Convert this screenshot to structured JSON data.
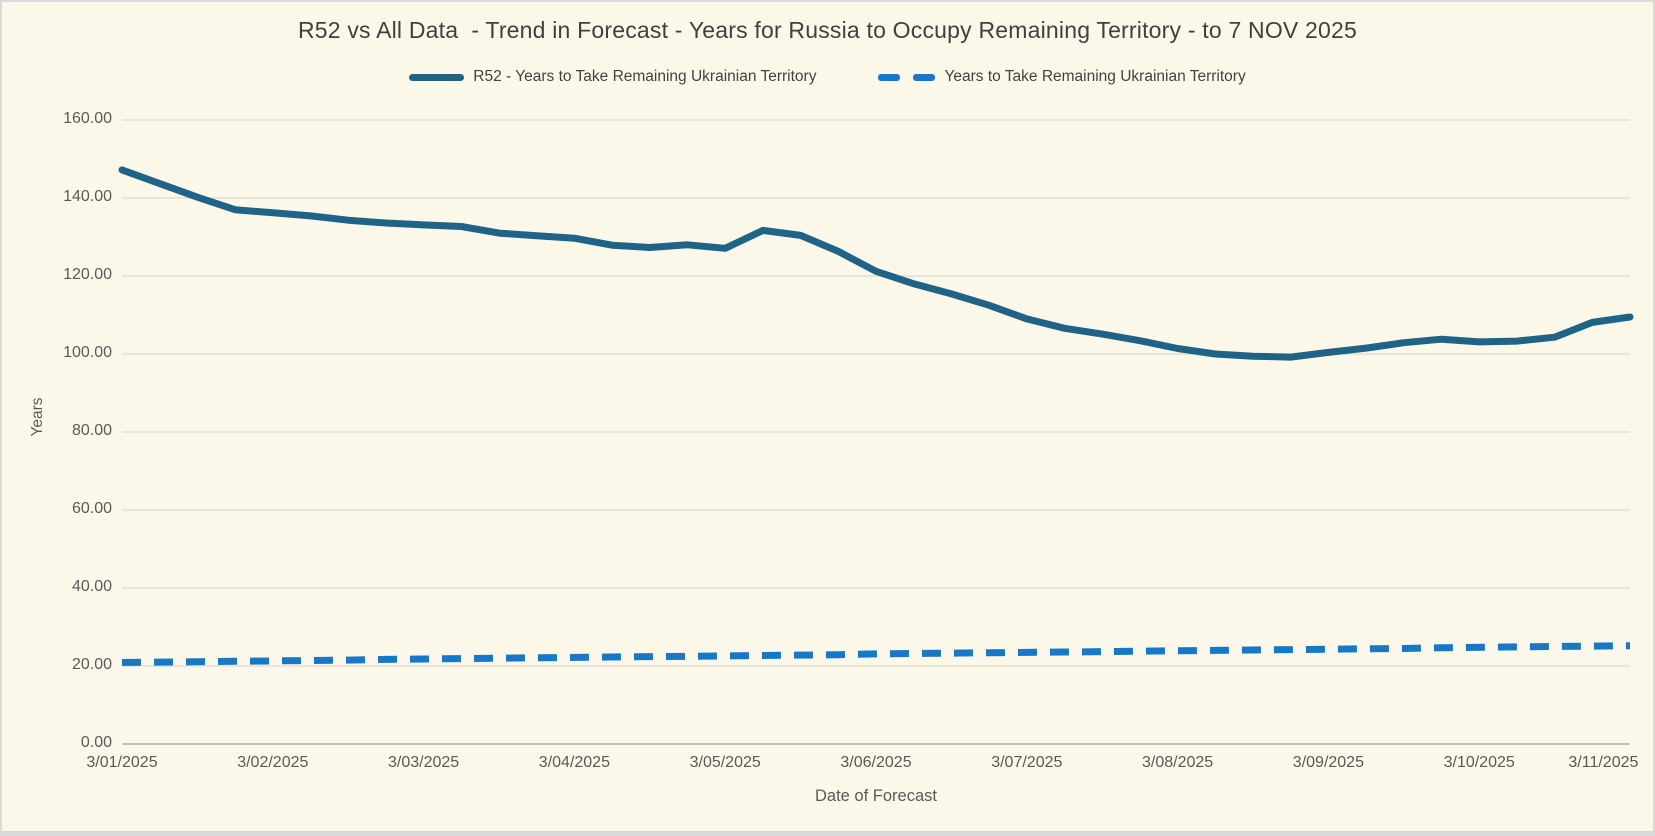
{
  "window": {
    "background_color": "#FCF8E9",
    "frame_color": "#D9D9D9"
  },
  "chart": {
    "title": "R52 vs All Data  - Trend in Forecast - Years for Russia to Occupy Remaining Territory - to 7 NOV 2025"
  },
  "chart_data": {
    "type": "line",
    "title": "R52 vs All Data  - Trend in Forecast - Years for Russia to Occupy Remaining Territory - to 7 NOV 2025",
    "xlabel": "Date of Forecast",
    "ylabel": "Years",
    "ylim": [
      0,
      160
    ],
    "grid": true,
    "legend_position": "top-center",
    "grid_color": "#DBDBD3",
    "axis_line_color": "#BFBFBF",
    "tick_text_color": "#595959",
    "title_text_color": "#404040",
    "x_tick_labels": [
      "3/01/2025",
      "3/02/2025",
      "3/03/2025",
      "3/04/2025",
      "3/05/2025",
      "3/06/2025",
      "3/07/2025",
      "3/08/2025",
      "3/09/2025",
      "3/10/2025",
      "3/11/2025"
    ],
    "y_ticks": [
      {
        "value": 160,
        "label": "160.00"
      },
      {
        "value": 140,
        "label": "140.00"
      },
      {
        "value": 120,
        "label": "120.00"
      },
      {
        "value": 100,
        "label": "100.00"
      },
      {
        "value": 80,
        "label": "80.00"
      },
      {
        "value": 60,
        "label": "60.00"
      },
      {
        "value": 40,
        "label": "40.00"
      },
      {
        "value": 20,
        "label": "20.00"
      },
      {
        "value": 0,
        "label": "0.00"
      }
    ],
    "points_per_category": 4,
    "series": [
      {
        "name": "R52 - Years to Take Remaining Ukrainian Territory",
        "style": "solid",
        "color": "#1F6386",
        "values": [
          147.2,
          143.7,
          140.2,
          137.0,
          136.2,
          135.4,
          134.3,
          133.6,
          133.1,
          132.7,
          131.0,
          130.3,
          129.7,
          127.9,
          127.3,
          128.0,
          127.1,
          131.7,
          130.4,
          126.3,
          121.2,
          118.0,
          115.4,
          112.5,
          109.0,
          106.6,
          105.1,
          103.4,
          101.4,
          100.0,
          99.4,
          99.2,
          100.4,
          101.5,
          102.9,
          103.8,
          103.1,
          103.3,
          104.3,
          108.1,
          109.5
        ]
      },
      {
        "name": "Years to Take Remaining Ukrainian Territory",
        "style": "dashed",
        "color": "#1778C8",
        "values": [
          20.9,
          21.0,
          21.1,
          21.2,
          21.3,
          21.4,
          21.5,
          21.7,
          21.8,
          21.9,
          22.0,
          22.1,
          22.2,
          22.3,
          22.4,
          22.5,
          22.6,
          22.7,
          22.8,
          22.9,
          23.1,
          23.2,
          23.3,
          23.4,
          23.5,
          23.6,
          23.7,
          23.8,
          23.9,
          24.0,
          24.1,
          24.2,
          24.3,
          24.4,
          24.5,
          24.7,
          24.8,
          24.9,
          25.0,
          25.1,
          25.2
        ]
      }
    ]
  }
}
